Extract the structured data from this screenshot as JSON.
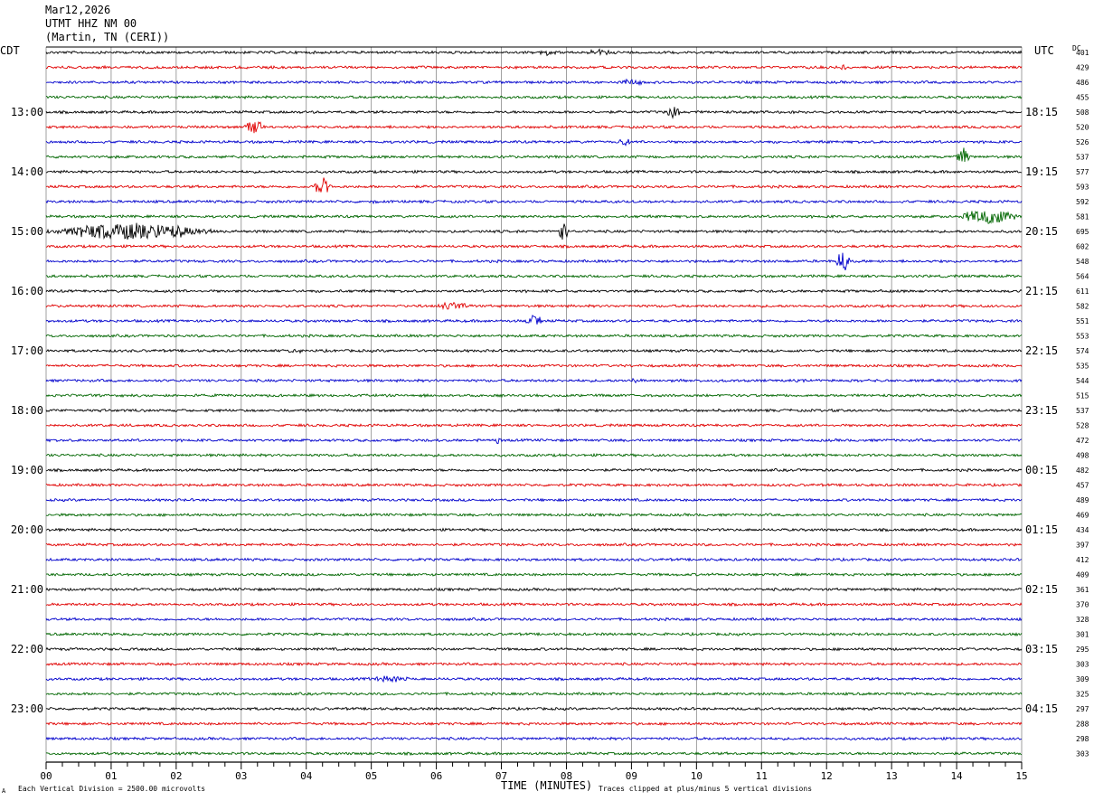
{
  "header": {
    "date": "Mar12,2026",
    "station": "UTMT HHZ NM 00",
    "location": "(Martin, TN (CERI))"
  },
  "labels": {
    "left_tz": "CDT",
    "right_tz": "UTC",
    "dc": "DC"
  },
  "footer": {
    "scale_note": "Each Vertical Division = 2500.00 microvolts",
    "clip_note": "Traces clipped at plus/minus 5 vertical divisions",
    "corner_mark": "A"
  },
  "chart_data": {
    "type": "seismogram",
    "xlabel": "TIME (MINUTES)",
    "xlim": [
      0,
      15
    ],
    "x_ticks": [
      "00",
      "01",
      "02",
      "03",
      "04",
      "05",
      "06",
      "07",
      "08",
      "09",
      "10",
      "11",
      "12",
      "13",
      "14",
      "15"
    ],
    "trace_colors": [
      "#000000",
      "#e00000",
      "#0000cc",
      "#006600"
    ],
    "left_hour_labels": [
      "13:00",
      "14:00",
      "15:00",
      "16:00",
      "17:00",
      "18:00",
      "19:00",
      "20:00",
      "21:00",
      "22:00",
      "23:00"
    ],
    "right_hour_labels": [
      "18:15",
      "19:15",
      "20:15",
      "21:15",
      "22:15",
      "23:15",
      "00:15",
      "01:15",
      "02:15",
      "03:15",
      "04:15"
    ],
    "dc_offsets": [
      401,
      429,
      486,
      455,
      508,
      520,
      526,
      537,
      577,
      593,
      592,
      581,
      695,
      602,
      548,
      564,
      611,
      582,
      551,
      553,
      574,
      535,
      544,
      515,
      537,
      528,
      472,
      498,
      482,
      457,
      489,
      469,
      434,
      397,
      412,
      409,
      361,
      370,
      328,
      301,
      295,
      303,
      309,
      325,
      297,
      288,
      298,
      303
    ],
    "events": [
      {
        "trace": 4,
        "minute": 9.65,
        "amp": 9,
        "dur": 0.12
      },
      {
        "trace": 5,
        "minute": 3.2,
        "amp": 8,
        "dur": 0.18
      },
      {
        "trace": 7,
        "minute": 14.1,
        "amp": 9,
        "dur": 0.12
      },
      {
        "trace": 9,
        "minute": 4.25,
        "amp": 10,
        "dur": 0.15
      },
      {
        "trace": 11,
        "minute": 14.5,
        "amp": 8,
        "dur": 0.5
      },
      {
        "trace": 12,
        "minute": 1.3,
        "amp": 9,
        "dur": 1.4
      },
      {
        "trace": 12,
        "minute": 7.95,
        "amp": 10,
        "dur": 0.1
      },
      {
        "trace": 14,
        "minute": 12.25,
        "amp": 12,
        "dur": 0.12
      },
      {
        "trace": 17,
        "minute": 6.3,
        "amp": 4,
        "dur": 0.3
      },
      {
        "trace": 18,
        "minute": 7.5,
        "amp": 6,
        "dur": 0.15
      },
      {
        "trace": 0,
        "minute": 7.7,
        "amp": 3,
        "dur": 0.15
      },
      {
        "trace": 0,
        "minute": 8.5,
        "amp": 3,
        "dur": 0.2
      },
      {
        "trace": 1,
        "minute": 12.25,
        "amp": 4,
        "dur": 0.06
      },
      {
        "trace": 2,
        "minute": 9.0,
        "amp": 3,
        "dur": 0.2
      },
      {
        "trace": 6,
        "minute": 8.9,
        "amp": 3,
        "dur": 0.1
      },
      {
        "trace": 10,
        "minute": 5.05,
        "amp": 3,
        "dur": 0.05
      },
      {
        "trace": 20,
        "minute": 3.8,
        "amp": 3,
        "dur": 0.15
      },
      {
        "trace": 22,
        "minute": 9.05,
        "amp": 3,
        "dur": 0.05
      },
      {
        "trace": 26,
        "minute": 6.95,
        "amp": 3,
        "dur": 0.05
      },
      {
        "trace": 42,
        "minute": 5.3,
        "amp": 3,
        "dur": 0.35
      }
    ]
  }
}
